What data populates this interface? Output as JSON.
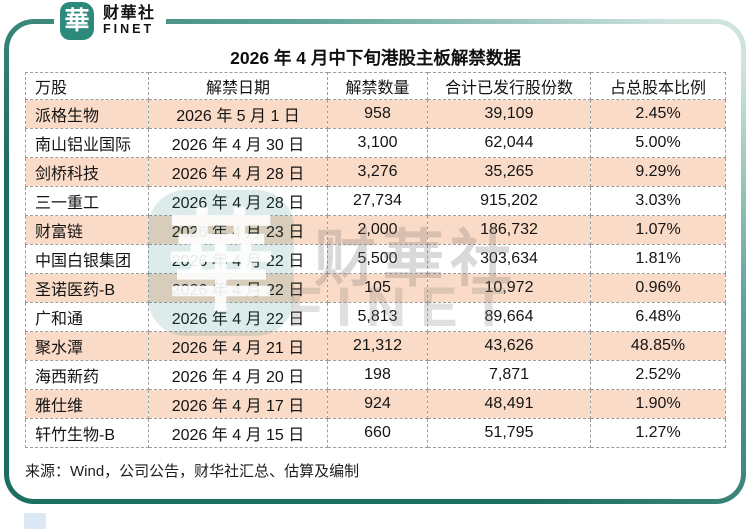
{
  "brand": {
    "logo_char": "華",
    "name_cn": "财華社",
    "name_en": "FINET"
  },
  "page": {
    "title": "2026 年 4 月中下旬港股主板解禁数据",
    "source": "来源：Wind，公司公告，财华社汇总、估算及编制"
  },
  "watermark": {
    "logo_char": "華",
    "text_cn": "财華社",
    "text_en": "FINET"
  },
  "colors": {
    "brand_teal": "#2c8a7c",
    "frame_teal_dark": "#1c6e61",
    "frame_teal_light": "#cfe3df",
    "row_peach": "#fadbc7"
  },
  "chart_data": {
    "type": "table",
    "title": "2026 年 4 月中下旬港股主板解禁数据",
    "unit_note": "万股",
    "columns": [
      "万股",
      "解禁日期",
      "解禁数量",
      "合计已发行股份数",
      "占总股本比例"
    ],
    "rows": [
      [
        "派格生物",
        "2026 年 5 月 1 日",
        "958",
        "39,109",
        "2.45%"
      ],
      [
        "南山铝业国际",
        "2026 年 4 月 30 日",
        "3,100",
        "62,044",
        "5.00%"
      ],
      [
        "剑桥科技",
        "2026 年 4 月 28 日",
        "3,276",
        "35,265",
        "9.29%"
      ],
      [
        "三一重工",
        "2026 年 4 月 28 日",
        "27,734",
        "915,202",
        "3.03%"
      ],
      [
        "财富链",
        "2026 年 4 月 23 日",
        "2,000",
        "186,732",
        "1.07%"
      ],
      [
        "中国白银集团",
        "2026 年 4 月 22 日",
        "5,500",
        "303,634",
        "1.81%"
      ],
      [
        "圣诺医药-B",
        "2026 年 4 月 22 日",
        "105",
        "10,972",
        "0.96%"
      ],
      [
        "广和通",
        "2026 年 4 月 22 日",
        "5,813",
        "89,664",
        "6.48%"
      ],
      [
        "聚水潭",
        "2026 年 4 月 21 日",
        "21,312",
        "43,626",
        "48.85%"
      ],
      [
        "海西新药",
        "2026 年 4 月 20 日",
        "198",
        "7,871",
        "2.52%"
      ],
      [
        "雅仕维",
        "2026 年 4 月 17 日",
        "924",
        "48,491",
        "1.90%"
      ],
      [
        "轩竹生物-B",
        "2026 年 4 月 15 日",
        "660",
        "51,795",
        "1.27%"
      ]
    ],
    "source": "来源：Wind，公司公告，财华社汇总、估算及编制"
  }
}
